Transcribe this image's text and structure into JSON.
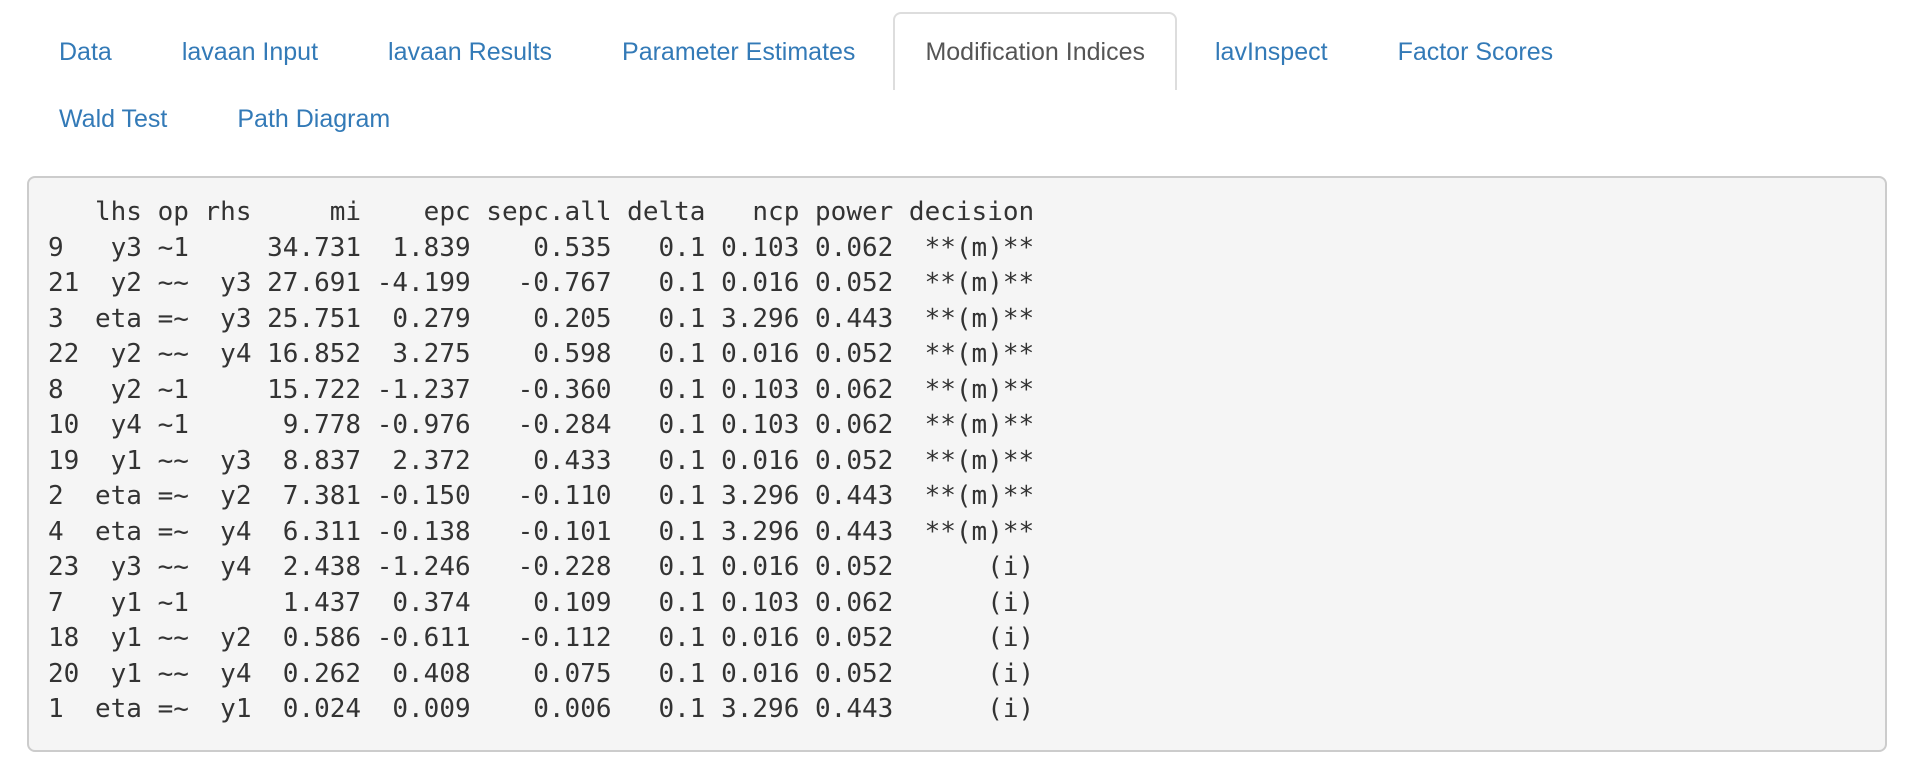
{
  "tabs": {
    "row1": [
      {
        "id": "data",
        "label": "Data",
        "active": false
      },
      {
        "id": "lavaan-input",
        "label": "lavaan Input",
        "active": false
      },
      {
        "id": "lavaan-results",
        "label": "lavaan Results",
        "active": false
      },
      {
        "id": "parameter-estimates",
        "label": "Parameter Estimates",
        "active": false
      },
      {
        "id": "modification-indices",
        "label": "Modification Indices",
        "active": true
      },
      {
        "id": "lavinspect",
        "label": "lavInspect",
        "active": false
      },
      {
        "id": "factor-scores",
        "label": "Factor Scores",
        "active": false
      }
    ],
    "row2": [
      {
        "id": "wald-test",
        "label": "Wald Test",
        "active": false
      },
      {
        "id": "path-diagram",
        "label": "Path Diagram",
        "active": false
      }
    ]
  },
  "output": {
    "columns": [
      {
        "key": "row",
        "header": "",
        "width": 2,
        "align": "left"
      },
      {
        "key": "lhs",
        "header": "lhs",
        "width": 3,
        "align": "right"
      },
      {
        "key": "op",
        "header": "op",
        "width": 2,
        "align": "right"
      },
      {
        "key": "rhs",
        "header": "rhs",
        "width": 3,
        "align": "right"
      },
      {
        "key": "mi",
        "header": "mi",
        "width": 6,
        "align": "right"
      },
      {
        "key": "epc",
        "header": "epc",
        "width": 6,
        "align": "right"
      },
      {
        "key": "sepc.all",
        "header": "sepc.all",
        "width": 8,
        "align": "right"
      },
      {
        "key": "delta",
        "header": "delta",
        "width": 5,
        "align": "right"
      },
      {
        "key": "ncp",
        "header": "ncp",
        "width": 5,
        "align": "right"
      },
      {
        "key": "power",
        "header": "power",
        "width": 5,
        "align": "right"
      },
      {
        "key": "decision",
        "header": "decision",
        "width": 8,
        "align": "right"
      }
    ],
    "rows": [
      [
        "9",
        "y3",
        "~1",
        "",
        "34.731",
        "1.839",
        "0.535",
        "0.1",
        "0.103",
        "0.062",
        "**(m)**"
      ],
      [
        "21",
        "y2",
        "~~",
        "y3",
        "27.691",
        "-4.199",
        "-0.767",
        "0.1",
        "0.016",
        "0.052",
        "**(m)**"
      ],
      [
        "3",
        "eta",
        "=~",
        "y3",
        "25.751",
        "0.279",
        "0.205",
        "0.1",
        "3.296",
        "0.443",
        "**(m)**"
      ],
      [
        "22",
        "y2",
        "~~",
        "y4",
        "16.852",
        "3.275",
        "0.598",
        "0.1",
        "0.016",
        "0.052",
        "**(m)**"
      ],
      [
        "8",
        "y2",
        "~1",
        "",
        "15.722",
        "-1.237",
        "-0.360",
        "0.1",
        "0.103",
        "0.062",
        "**(m)**"
      ],
      [
        "10",
        "y4",
        "~1",
        "",
        "9.778",
        "-0.976",
        "-0.284",
        "0.1",
        "0.103",
        "0.062",
        "**(m)**"
      ],
      [
        "19",
        "y1",
        "~~",
        "y3",
        "8.837",
        "2.372",
        "0.433",
        "0.1",
        "0.016",
        "0.052",
        "**(m)**"
      ],
      [
        "2",
        "eta",
        "=~",
        "y2",
        "7.381",
        "-0.150",
        "-0.110",
        "0.1",
        "3.296",
        "0.443",
        "**(m)**"
      ],
      [
        "4",
        "eta",
        "=~",
        "y4",
        "6.311",
        "-0.138",
        "-0.101",
        "0.1",
        "3.296",
        "0.443",
        "**(m)**"
      ],
      [
        "23",
        "y3",
        "~~",
        "y4",
        "2.438",
        "-1.246",
        "-0.228",
        "0.1",
        "0.016",
        "0.052",
        "(i)"
      ],
      [
        "7",
        "y1",
        "~1",
        "",
        "1.437",
        "0.374",
        "0.109",
        "0.1",
        "0.103",
        "0.062",
        "(i)"
      ],
      [
        "18",
        "y1",
        "~~",
        "y2",
        "0.586",
        "-0.611",
        "-0.112",
        "0.1",
        "0.016",
        "0.052",
        "(i)"
      ],
      [
        "20",
        "y1",
        "~~",
        "y4",
        "0.262",
        "0.408",
        "0.075",
        "0.1",
        "0.016",
        "0.052",
        "(i)"
      ],
      [
        "1",
        "eta",
        "=~",
        "y1",
        "0.024",
        "0.009",
        "0.006",
        "0.1",
        "3.296",
        "0.443",
        "(i)"
      ]
    ]
  },
  "colors": {
    "tab_link": "#337ab7",
    "tab_active_text": "#555555",
    "tab_active_border": "#dddddd",
    "panel_background": "#f5f5f5",
    "panel_border": "#cccccc",
    "panel_text": "#333333"
  }
}
